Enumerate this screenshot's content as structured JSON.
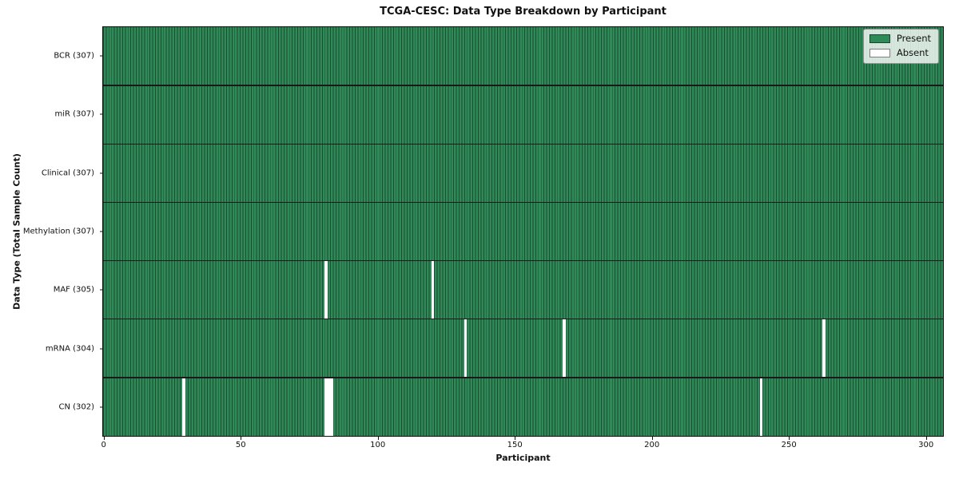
{
  "chart_data": {
    "type": "heatmap",
    "title": "TCGA-CESC: Data Type Breakdown by Participant",
    "xlabel": "Participant",
    "ylabel": "Data Type (Total Sample Count)",
    "x_ticks": [
      0,
      50,
      100,
      150,
      200,
      250,
      300
    ],
    "n_participants": 307,
    "x_range": [
      -0.5,
      306.5
    ],
    "grid": false,
    "categories": [
      "BCR",
      "miR",
      "Clinical",
      "Methylation",
      "MAF",
      "mRNA",
      "CN"
    ],
    "legend": {
      "position": "upper-right",
      "items": [
        {
          "label": "Present",
          "color": "#2e8b57"
        },
        {
          "label": "Absent",
          "color": "#ffffff"
        }
      ]
    },
    "colors": {
      "present": "#2e8b57",
      "present_edge": "#1f4a33",
      "absent": "#ffffff",
      "frame": "#111111",
      "separator": "#1a1a1a"
    },
    "rows": [
      {
        "label": "BCR (307)",
        "data_type": "BCR",
        "present_count": 307,
        "absent_participants": []
      },
      {
        "label": "miR (307)",
        "data_type": "miR",
        "present_count": 307,
        "absent_participants": []
      },
      {
        "label": "Clinical (307)",
        "data_type": "Clinical",
        "present_count": 307,
        "absent_participants": []
      },
      {
        "label": "Methylation (307)",
        "data_type": "Methylation",
        "present_count": 307,
        "absent_participants": []
      },
      {
        "label": "MAF (305)",
        "data_type": "MAF",
        "present_count": 305,
        "absent_participants": [
          81,
          120
        ]
      },
      {
        "label": "mRNA (304)",
        "data_type": "mRNA",
        "present_count": 304,
        "absent_participants": [
          132,
          168,
          263
        ]
      },
      {
        "label": "CN (302)",
        "data_type": "CN",
        "present_count": 302,
        "absent_participants": [
          29,
          81,
          82,
          83,
          240
        ]
      }
    ]
  }
}
